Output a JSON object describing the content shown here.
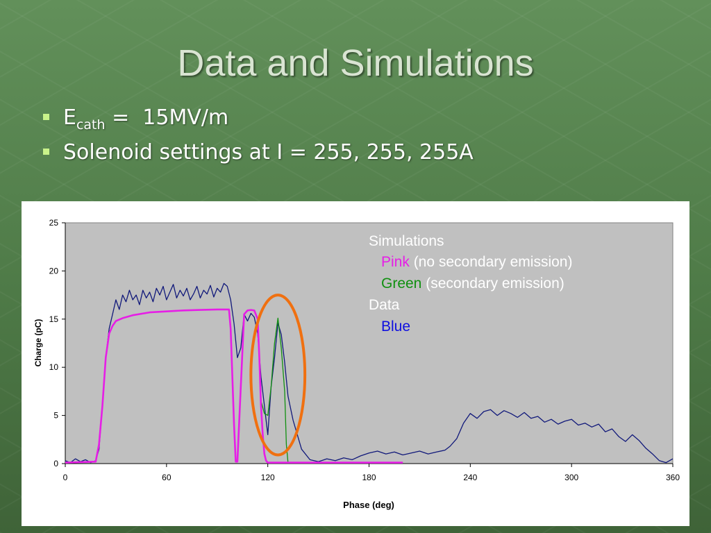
{
  "title": "Data and Simulations",
  "bullets": {
    "field_symbol": "E",
    "field_subscript": "cath",
    "field_value": " =  15MV/m",
    "solenoid": "Solenoid settings at I = 255, 255, 255A"
  },
  "colors": {
    "pink": "#e61ee6",
    "green": "#109010",
    "blue": "#10187a",
    "highlight": "#f07010",
    "plot_bg": "#c0c0c0"
  },
  "chart_data": {
    "type": "line",
    "title": "",
    "xlabel": "Phase (deg)",
    "ylabel": "Charge (pC)",
    "xlim": [
      0,
      360
    ],
    "ylim": [
      0,
      25
    ],
    "xticks": [
      0,
      60,
      120,
      180,
      240,
      300,
      360
    ],
    "yticks": [
      0,
      5,
      10,
      15,
      20,
      25
    ],
    "grid": false,
    "legend": {
      "heading_sim": "Simulations",
      "pink_word": "Pink",
      "pink_desc": " (no secondary emission)",
      "green_word": "Green",
      "green_desc": " (secondary emission)",
      "heading_data": "Data",
      "blue_word": "Blue"
    },
    "annotation": {
      "type": "ellipse",
      "center": [
        126,
        9.2
      ],
      "radius": [
        16,
        8.3
      ],
      "color": "#f07010"
    },
    "series": [
      {
        "color": "#10187a",
        "x": [
          0,
          3,
          6,
          9,
          12,
          15,
          18,
          20,
          22,
          24,
          26,
          28,
          30,
          32,
          34,
          36,
          38,
          40,
          42,
          44,
          46,
          48,
          50,
          52,
          54,
          56,
          58,
          60,
          62,
          64,
          66,
          68,
          70,
          72,
          74,
          76,
          78,
          80,
          82,
          84,
          86,
          88,
          90,
          92,
          94,
          96,
          98,
          100,
          102,
          104,
          106,
          108,
          110,
          112,
          114,
          116,
          118,
          120,
          122,
          124,
          126,
          128,
          130,
          132,
          135,
          140,
          145,
          150,
          155,
          160,
          165,
          170,
          175,
          180,
          185,
          190,
          195,
          200,
          205,
          210,
          215,
          220,
          225,
          228,
          232,
          236,
          240,
          244,
          248,
          252,
          256,
          260,
          264,
          268,
          272,
          276,
          280,
          284,
          288,
          292,
          296,
          300,
          304,
          308,
          312,
          316,
          320,
          324,
          328,
          332,
          336,
          340,
          344,
          348,
          352,
          356,
          360
        ],
        "y": [
          0.3,
          0.1,
          0.5,
          0.2,
          0.4,
          0.1,
          0.3,
          1.5,
          6,
          11,
          14,
          15.5,
          17,
          16,
          17.5,
          16.8,
          18,
          17,
          17.5,
          16.5,
          18,
          17.2,
          17.8,
          16.8,
          18.2,
          17.5,
          18.4,
          17,
          17.8,
          18.6,
          17.2,
          18,
          17.4,
          18.2,
          17,
          17.6,
          18.4,
          17.2,
          18,
          17.6,
          18.5,
          17.3,
          18.2,
          17.8,
          18.7,
          18.4,
          17,
          14.5,
          11,
          12,
          15.5,
          14.8,
          15.6,
          15.2,
          13.5,
          9,
          6,
          3,
          8,
          11,
          14.6,
          13.4,
          10.5,
          7,
          4.5,
          1.5,
          0.4,
          0.2,
          0.5,
          0.3,
          0.6,
          0.4,
          0.8,
          1.1,
          1.3,
          1.0,
          1.2,
          0.9,
          1.1,
          1.3,
          1.0,
          1.2,
          1.4,
          1.8,
          2.6,
          4.2,
          5.2,
          4.7,
          5.4,
          5.6,
          5.0,
          5.5,
          5.2,
          4.8,
          5.3,
          4.7,
          4.9,
          4.3,
          4.6,
          4.1,
          4.4,
          4.6,
          4.0,
          4.2,
          3.8,
          4.1,
          3.3,
          3.6,
          2.8,
          2.3,
          3.0,
          2.4,
          1.6,
          1.0,
          0.3,
          0.1,
          0.5
        ]
      },
      {
        "color": "#109010",
        "x": [
          0,
          18,
          20,
          22,
          24,
          26,
          28,
          30,
          34,
          40,
          50,
          60,
          70,
          80,
          90,
          97,
          98,
          100,
          101,
          102,
          104,
          106,
          108,
          110,
          112,
          114,
          115,
          116,
          118,
          120,
          122,
          124,
          126,
          128,
          130,
          131,
          132,
          135,
          200
        ],
        "y": [
          0.1,
          0.2,
          2,
          6,
          11,
          13.5,
          14.3,
          14.8,
          15.1,
          15.4,
          15.7,
          15.8,
          15.9,
          15.95,
          16,
          16,
          14,
          4,
          0.3,
          0.3,
          8,
          15.5,
          15.9,
          15.95,
          15.9,
          15,
          11,
          6.5,
          5.2,
          5,
          8,
          12.5,
          15.1,
          12,
          7.5,
          2,
          0.1,
          0.1,
          0.1
        ]
      },
      {
        "color": "#e61ee6",
        "x": [
          0,
          18,
          20,
          22,
          24,
          26,
          28,
          30,
          34,
          40,
          50,
          60,
          70,
          80,
          90,
          97,
          98,
          100,
          101,
          102,
          104,
          106,
          108,
          110,
          112,
          114,
          115,
          116,
          117,
          118,
          119,
          120,
          124,
          130,
          140,
          200
        ],
        "y": [
          0.1,
          0.2,
          2,
          6,
          11,
          13.5,
          14.3,
          14.8,
          15.1,
          15.4,
          15.7,
          15.8,
          15.9,
          15.95,
          16,
          16,
          14,
          4,
          0.2,
          0.2,
          8,
          15.5,
          15.9,
          15.95,
          15.9,
          15,
          11,
          6,
          3,
          1,
          0.3,
          0.1,
          0.1,
          0.1,
          0.1,
          0.1
        ]
      }
    ]
  }
}
